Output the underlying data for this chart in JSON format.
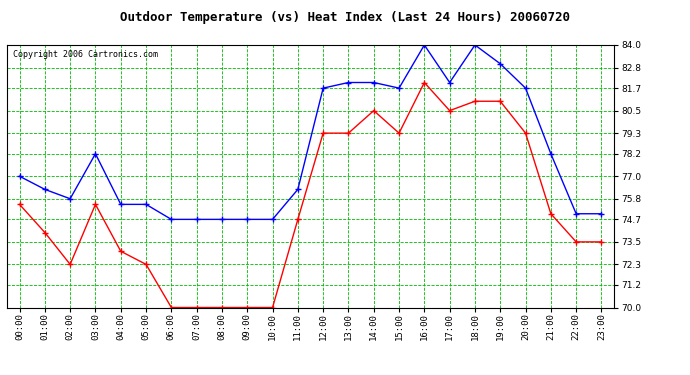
{
  "title": "Outdoor Temperature (vs) Heat Index (Last 24 Hours) 20060720",
  "copyright": "Copyright 2006 Cartronics.com",
  "hours": [
    "00:00",
    "01:00",
    "02:00",
    "03:00",
    "04:00",
    "05:00",
    "06:00",
    "07:00",
    "08:00",
    "09:00",
    "10:00",
    "11:00",
    "12:00",
    "13:00",
    "14:00",
    "15:00",
    "16:00",
    "17:00",
    "18:00",
    "19:00",
    "20:00",
    "21:00",
    "22:00",
    "23:00"
  ],
  "blue_temp": [
    77.0,
    76.3,
    75.8,
    78.2,
    75.5,
    75.5,
    74.7,
    74.7,
    74.7,
    74.7,
    74.7,
    76.3,
    81.7,
    82.0,
    82.0,
    81.7,
    84.0,
    82.0,
    84.0,
    83.0,
    81.7,
    78.2,
    75.0,
    75.0
  ],
  "red_heat": [
    75.5,
    74.0,
    72.3,
    75.5,
    73.0,
    72.3,
    70.0,
    70.0,
    70.0,
    70.0,
    70.0,
    74.7,
    79.3,
    79.3,
    80.5,
    79.3,
    82.0,
    80.5,
    81.0,
    81.0,
    79.3,
    75.0,
    73.5,
    73.5
  ],
  "ylim": [
    70.0,
    84.0
  ],
  "yticks": [
    70.0,
    71.2,
    72.3,
    73.5,
    74.7,
    75.8,
    77.0,
    78.2,
    79.3,
    80.5,
    81.7,
    82.8,
    84.0
  ],
  "blue_color": "#0000ff",
  "red_color": "#ff0000",
  "grid_color": "#00bb00",
  "bg_color": "#ffffff",
  "title_fontsize": 9,
  "copyright_fontsize": 6,
  "tick_fontsize": 6.5
}
